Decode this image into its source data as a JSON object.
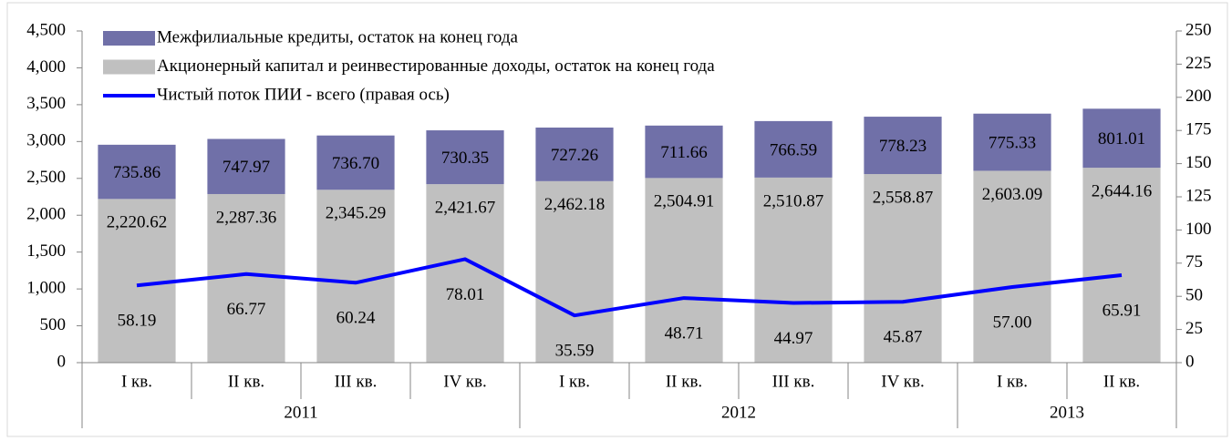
{
  "chart_data": {
    "type": "bar",
    "categories": [
      "I кв.",
      "II кв.",
      "III кв.",
      "IV кв.",
      "I кв.",
      "II кв.",
      "III кв.",
      "IV кв.",
      "I кв.",
      "II кв."
    ],
    "year_groups": [
      {
        "label": "2011",
        "count": 4
      },
      {
        "label": "2012",
        "count": 4
      },
      {
        "label": "2013",
        "count": 2
      }
    ],
    "series": [
      {
        "name": "Межфилиальные кредиты, остаток на конец года",
        "type": "bar",
        "color": "#7070a8",
        "values": [
          735.86,
          747.97,
          736.7,
          730.35,
          727.26,
          711.66,
          766.59,
          778.23,
          775.33,
          801.01
        ],
        "value_labels": [
          "735.86",
          "747.97",
          "736.70",
          "730.35",
          "727.26",
          "711.66",
          "766.59",
          "778.23",
          "775.33",
          "801.01"
        ]
      },
      {
        "name": "Акционерный капитал и реинвестированные доходы, остаток на конец года",
        "type": "bar",
        "color": "#c0c0c0",
        "values": [
          2220.62,
          2287.36,
          2345.29,
          2421.67,
          2462.18,
          2504.91,
          2510.87,
          2558.87,
          2603.09,
          2644.16
        ],
        "value_labels": [
          "2,220.62",
          "2,287.36",
          "2,345.29",
          "2,421.67",
          "2,462.18",
          "2,504.91",
          "2,510.87",
          "2,558.87",
          "2,603.09",
          "2,644.16"
        ]
      },
      {
        "name": "Чистый поток ПИИ - всего (правая ось)",
        "type": "line",
        "axis": "y2",
        "color": "#0000ff",
        "values": [
          58.19,
          66.77,
          60.24,
          78.01,
          35.59,
          48.71,
          44.97,
          45.87,
          57.0,
          65.91
        ],
        "value_labels": [
          "58.19",
          "66.77",
          "60.24",
          "78.01",
          "35.59",
          "48.71",
          "44.97",
          "45.87",
          "57.00",
          "65.91"
        ]
      }
    ],
    "ylim": [
      0,
      4500
    ],
    "yticks": [
      0,
      500,
      {
        "value": 1000,
        "label": "1,000"
      },
      {
        "value": 1500,
        "label": "1,500"
      },
      {
        "value": 2000,
        "label": "2,000"
      },
      {
        "value": 2500,
        "label": "2,500"
      },
      {
        "value": 3000,
        "label": "3,000"
      },
      {
        "value": 3500,
        "label": "3,500"
      },
      {
        "value": 4000,
        "label": "4,000"
      },
      {
        "value": 4500,
        "label": "4,500"
      }
    ],
    "y2lim": [
      0,
      250
    ],
    "y2ticks": [
      0,
      25,
      50,
      75,
      100,
      125,
      150,
      175,
      200,
      225,
      250
    ],
    "legend": "top-left"
  }
}
